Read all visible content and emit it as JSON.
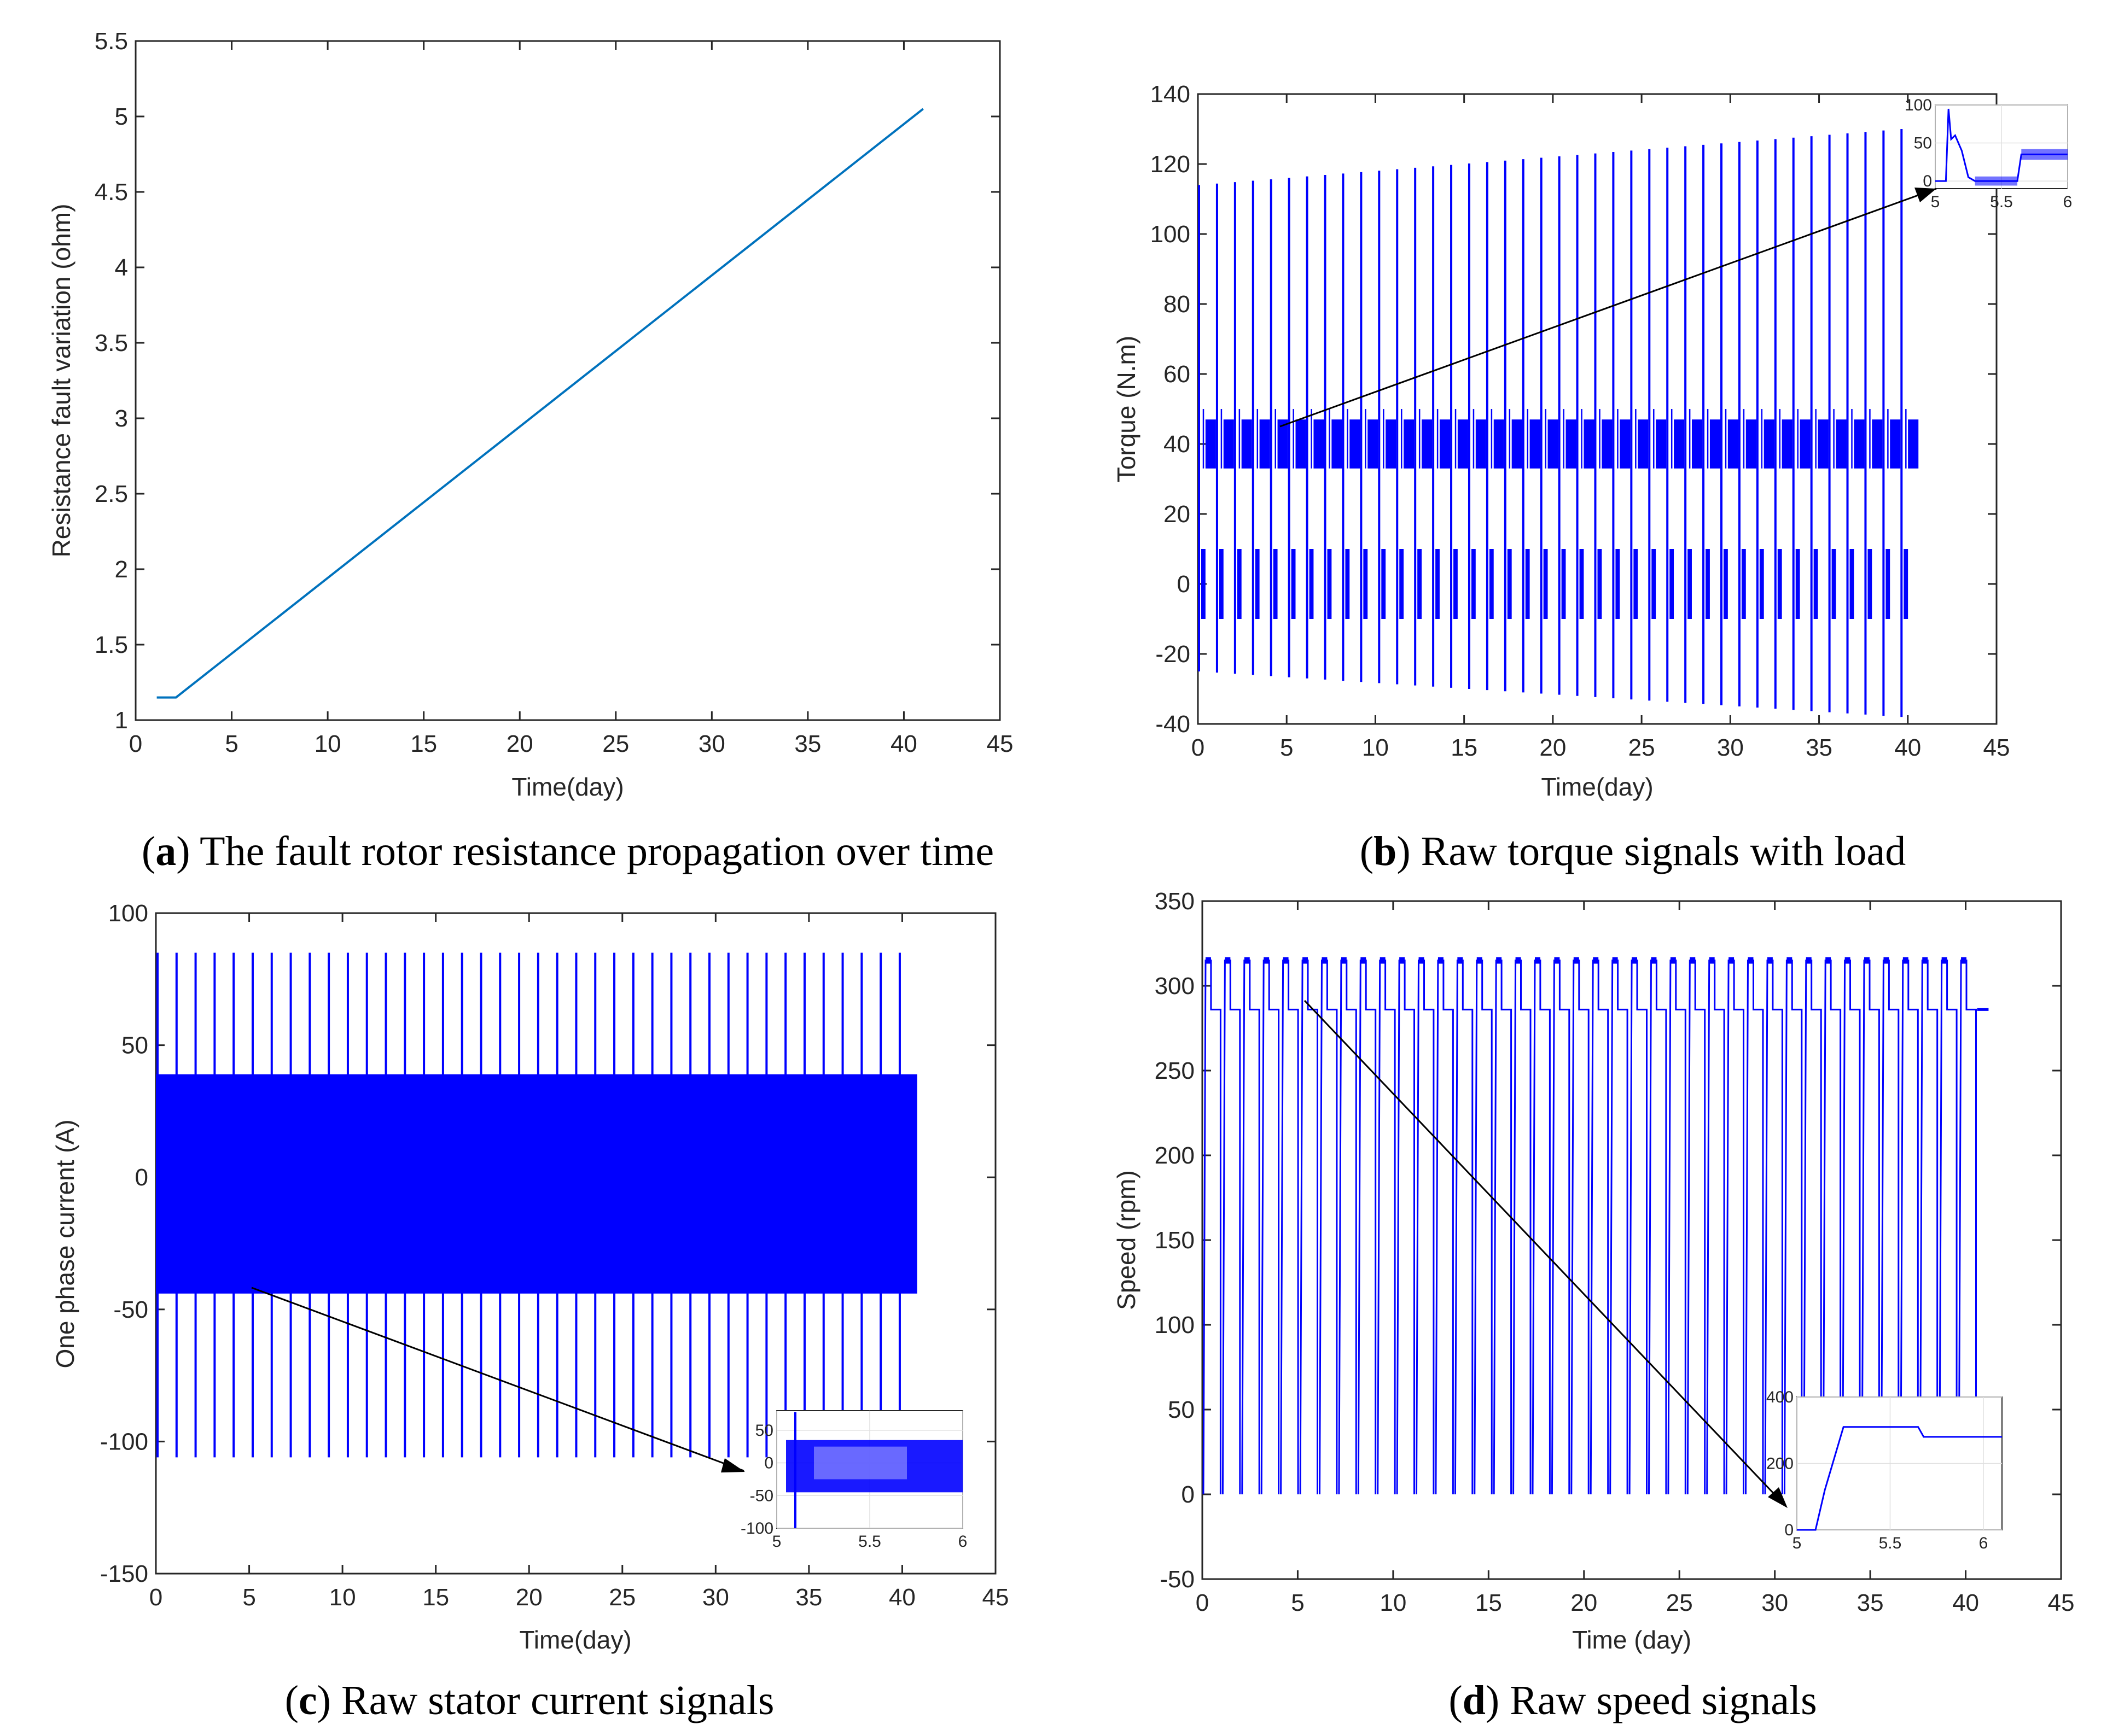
{
  "chart_data": [
    {
      "id": "a",
      "type": "line",
      "caption_letter": "a",
      "caption_text": " The fault rotor resistance propagation over time",
      "xlabel": "Time(day)",
      "ylabel": "Resistance fault variation (ohm)",
      "xlim": [
        0,
        45
      ],
      "ylim": [
        1,
        5.5
      ],
      "xticks": [
        "0",
        "5",
        "10",
        "15",
        "20",
        "25",
        "30",
        "35",
        "40",
        "45"
      ],
      "yticks": [
        "1",
        "1.5",
        "2",
        "2.5",
        "3",
        "3.5",
        "4",
        "4.5",
        "5",
        "5.5"
      ],
      "line_color": "#0072BD",
      "series": [
        {
          "name": "resistance",
          "x": [
            1.1,
            2.1,
            41
          ],
          "y": [
            1.15,
            1.15,
            5.05
          ]
        }
      ]
    },
    {
      "id": "b",
      "type": "line",
      "caption_letter": "b",
      "caption_text": " Raw torque signals with load",
      "xlabel": "Time(day)",
      "ylabel": "Torque (N.m)",
      "xlim": [
        0,
        45
      ],
      "ylim": [
        -40,
        140
      ],
      "xticks": [
        "0",
        "5",
        "10",
        "15",
        "20",
        "25",
        "30",
        "35",
        "40",
        "45"
      ],
      "yticks": [
        "-40",
        "-20",
        "0",
        "20",
        "40",
        "60",
        "80",
        "100",
        "120",
        "140"
      ],
      "line_color": "#0000FF",
      "signal": {
        "start": 0,
        "end": 40.6,
        "cycles": 40,
        "peak_start": 114,
        "peak_end": 130,
        "min_start": -25,
        "min_end": -38,
        "upper_band": [
          33,
          47
        ],
        "lower_band": [
          -10,
          10
        ]
      },
      "inset": {
        "xlim": [
          5,
          6
        ],
        "ylim": [
          -10,
          100
        ],
        "xticks": [
          "5",
          "5.5",
          "6"
        ],
        "yticks": [
          "0",
          "50",
          "100"
        ]
      }
    },
    {
      "id": "c",
      "type": "line",
      "caption_letter": "c",
      "caption_text": " Raw stator current signals",
      "xlabel": "Time(day)",
      "ylabel": "One phase current (A)",
      "xlim": [
        0,
        45
      ],
      "ylim": [
        -150,
        100
      ],
      "xticks": [
        "0",
        "5",
        "10",
        "15",
        "20",
        "25",
        "30",
        "35",
        "40",
        "45"
      ],
      "yticks": [
        "-150",
        "-100",
        "-50",
        "0",
        "50",
        "100"
      ],
      "line_color": "#0000FF",
      "signal": {
        "start": 0,
        "end": 40.8,
        "cycles": 40,
        "peak": 85,
        "min": -106,
        "band": [
          -44,
          39
        ]
      },
      "inset": {
        "xlim": [
          5,
          6
        ],
        "ylim": [
          -100,
          80
        ],
        "xticks": [
          "5",
          "5.5",
          "6"
        ],
        "yticks": [
          "-100",
          "-50",
          "0",
          "50"
        ]
      }
    },
    {
      "id": "d",
      "type": "line",
      "caption_letter": "d",
      "caption_text": " Raw speed signals",
      "xlabel": "Time (day)",
      "ylabel": "Speed (rpm)",
      "xlim": [
        0,
        45
      ],
      "ylim": [
        -50,
        350
      ],
      "xticks": [
        "0",
        "5",
        "10",
        "15",
        "20",
        "25",
        "30",
        "35",
        "40",
        "45"
      ],
      "yticks": [
        "-50",
        "0",
        "50",
        "100",
        "150",
        "200",
        "250",
        "300",
        "350"
      ],
      "line_color": "#0000FF",
      "signal": {
        "start": 0,
        "end": 40.6,
        "cycles": 40,
        "high": 315,
        "low": 286,
        "min": 0
      },
      "inset": {
        "xlim": [
          5,
          6.1
        ],
        "ylim": [
          0,
          400
        ],
        "xticks": [
          "5",
          "5.5",
          "6"
        ],
        "yticks": [
          "0",
          "200",
          "400"
        ]
      }
    }
  ]
}
